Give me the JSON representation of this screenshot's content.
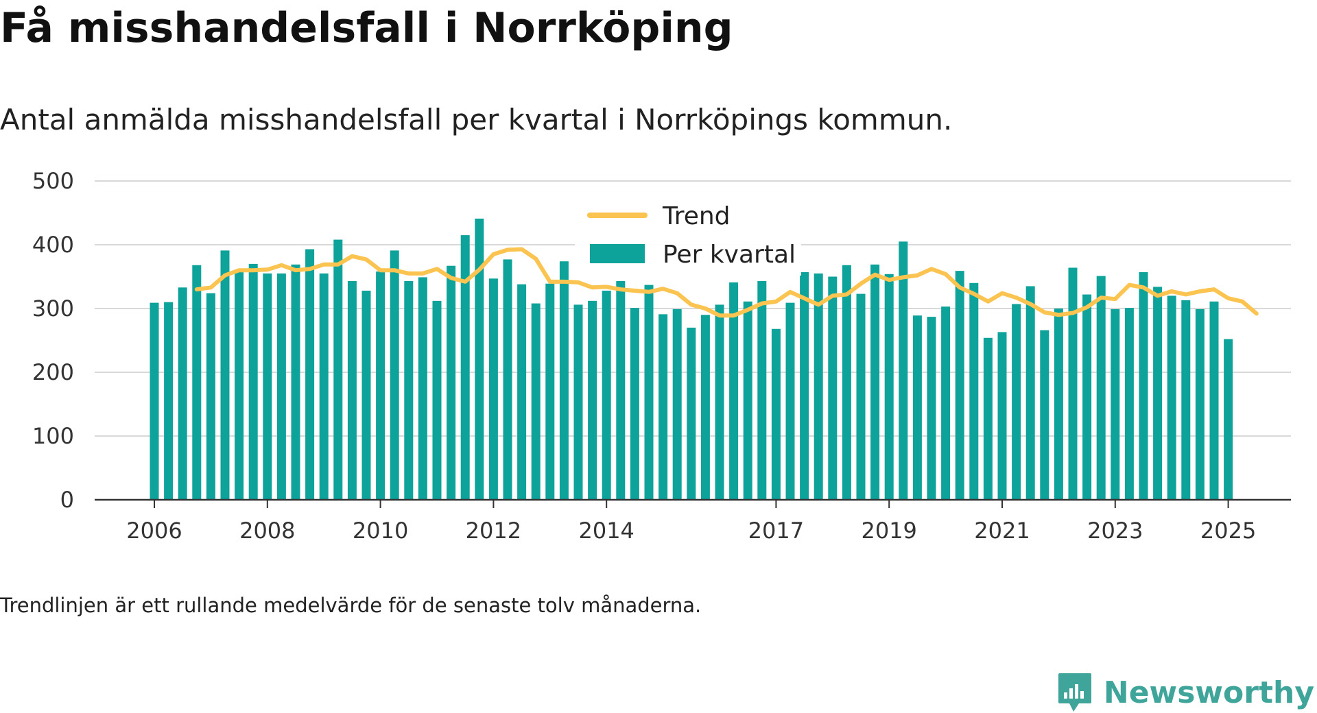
{
  "chart_data": {
    "type": "bar",
    "title": "Få misshandelsfall i Norrköping",
    "subtitle": "Antal anmälda misshandelsfall per kvartal i Norrköpings kommun.",
    "note": "Trendlinjen är ett rullande medelvärde för de senaste tolv månaderna.",
    "ylim": [
      0,
      500
    ],
    "y_ticks": [
      0,
      100,
      200,
      300,
      400,
      500
    ],
    "x_tick_labels": [
      {
        "label": "2006",
        "index": 0
      },
      {
        "label": "2008",
        "index": 8
      },
      {
        "label": "2010",
        "index": 16
      },
      {
        "label": "2012",
        "index": 24
      },
      {
        "label": "2014",
        "index": 32
      },
      {
        "label": "2017",
        "index": 44
      },
      {
        "label": "2019",
        "index": 52
      },
      {
        "label": "2021",
        "index": 60
      },
      {
        "label": "2023",
        "index": 68
      },
      {
        "label": "2025",
        "index": 76
      }
    ],
    "grid": true,
    "legend_position": "top-center",
    "series": [
      {
        "name": "Per kvartal",
        "kind": "bar",
        "color": "#0ea39a",
        "values": [
          309,
          310,
          333,
          368,
          324,
          391,
          360,
          370,
          355,
          355,
          369,
          393,
          355,
          408,
          343,
          328,
          358,
          391,
          343,
          349,
          312,
          367,
          415,
          441,
          347,
          377,
          338,
          308,
          339,
          374,
          306,
          312,
          328,
          343,
          301,
          337,
          291,
          299,
          270,
          290,
          306,
          341,
          311,
          343,
          268,
          309,
          357,
          355,
          350,
          368,
          323,
          369,
          354,
          405,
          289,
          287,
          303,
          359,
          340,
          254,
          263,
          307,
          335,
          266,
          300,
          364,
          322,
          351,
          299,
          301,
          357,
          334,
          320,
          313,
          299,
          311,
          252
        ]
      },
      {
        "name": "Trend",
        "kind": "line",
        "color": "#fbc34f",
        "start_index": 3,
        "values": [
          330,
          333,
          352,
          360,
          360,
          361,
          368,
          360,
          362,
          369,
          369,
          382,
          377,
          360,
          360,
          355,
          355,
          362,
          348,
          342,
          361,
          385,
          392,
          393,
          378,
          342,
          342,
          341,
          333,
          334,
          330,
          328,
          326,
          331,
          324,
          306,
          300,
          289,
          289,
          298,
          308,
          311,
          326,
          316,
          306,
          320,
          322,
          339,
          353,
          345,
          349,
          352,
          362,
          354,
          333,
          323,
          311,
          324,
          317,
          307,
          294,
          290,
          293,
          302,
          317,
          315,
          337,
          333,
          320,
          327,
          322,
          327,
          330,
          316,
          311,
          292
        ]
      }
    ]
  },
  "branding": {
    "name": "Newsworthy",
    "icon": "chat-bubble-bar-chart-icon",
    "color": "#3fa59a"
  }
}
